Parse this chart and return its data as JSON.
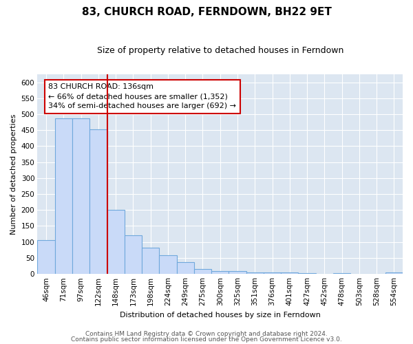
{
  "title": "83, CHURCH ROAD, FERNDOWN, BH22 9ET",
  "subtitle": "Size of property relative to detached houses in Ferndown",
  "xlabel": "Distribution of detached houses by size in Ferndown",
  "ylabel": "Number of detached properties",
  "bar_labels": [
    "46sqm",
    "71sqm",
    "97sqm",
    "122sqm",
    "148sqm",
    "173sqm",
    "198sqm",
    "224sqm",
    "249sqm",
    "275sqm",
    "300sqm",
    "325sqm",
    "351sqm",
    "376sqm",
    "401sqm",
    "427sqm",
    "452sqm",
    "478sqm",
    "503sqm",
    "528sqm",
    "554sqm"
  ],
  "bar_values": [
    105,
    487,
    487,
    453,
    200,
    120,
    82,
    57,
    37,
    14,
    9,
    9,
    3,
    3,
    3,
    2,
    0,
    2,
    0,
    0,
    5
  ],
  "bar_color": "#c9daf8",
  "bar_edge_color": "#6fa8dc",
  "vline_x": 4.0,
  "vline_color": "#cc0000",
  "annotation_title": "83 CHURCH ROAD: 136sqm",
  "annotation_line1": "← 66% of detached houses are smaller (1,352)",
  "annotation_line2": "34% of semi-detached houses are larger (692) →",
  "annotation_box_color": "#ffffff",
  "annotation_box_edge": "#cc0000",
  "ylim": [
    0,
    625
  ],
  "yticks": [
    0,
    50,
    100,
    150,
    200,
    250,
    300,
    350,
    400,
    450,
    500,
    550,
    600
  ],
  "footer1": "Contains HM Land Registry data © Crown copyright and database right 2024.",
  "footer2": "Contains public sector information licensed under the Open Government Licence v3.0.",
  "fig_bg_color": "#ffffff",
  "plot_bg": "#dce6f1",
  "grid_color": "#ffffff",
  "title_fontsize": 11,
  "subtitle_fontsize": 9,
  "axis_label_fontsize": 8,
  "tick_fontsize": 7.5,
  "annotation_fontsize": 8,
  "footer_fontsize": 6.5
}
